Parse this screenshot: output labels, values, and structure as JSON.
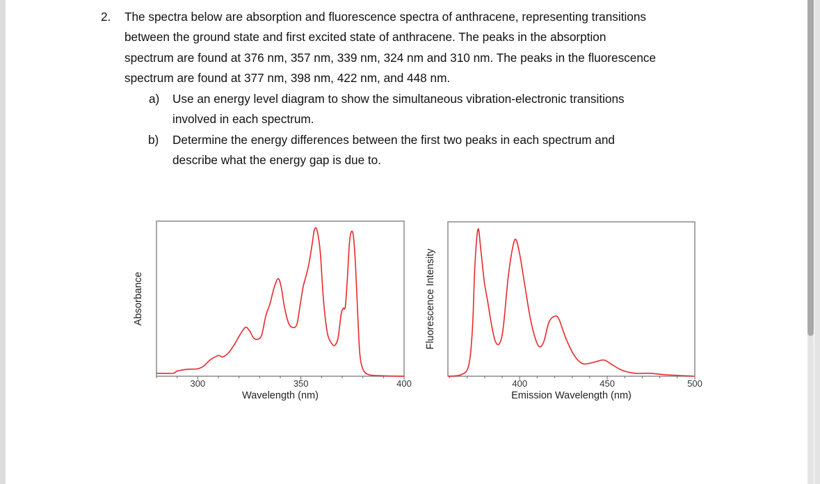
{
  "question": {
    "number": "2.",
    "lines": [
      "The spectra below are absorption and fluorescence spectra of anthracene, representing transitions",
      "between the ground state and first excited state of anthracene. The peaks in the absorption",
      "spectrum are found at 376 nm, 357 nm, 339 nm, 324 nm and 310 nm. The peaks in the fluorescence",
      "spectrum are found at 377 nm, 398 nm, 422 nm, and 448 nm."
    ],
    "parts": [
      {
        "label": "a)",
        "lines": [
          "Use an energy level diagram to show the simultaneous vibration-electronic transitions",
          "involved in each spectrum."
        ]
      },
      {
        "label": "b)",
        "lines": [
          "Determine the energy differences between the first two peaks in each spectrum and",
          "describe what the energy gap is due to."
        ]
      }
    ]
  },
  "colors": {
    "curve": "#e8282b",
    "frame": "#8a8a8a"
  },
  "chart_data": [
    {
      "type": "line",
      "title": "",
      "xlabel": "Wavelength (nm)",
      "ylabel": "Absorbance",
      "xlim": [
        280,
        400
      ],
      "ylim": [
        0,
        1.05
      ],
      "xticks": [
        300,
        350,
        400
      ],
      "minor_tick_step": 10,
      "grid": false,
      "series": [
        {
          "name": "Absorption",
          "x": [
            280,
            288,
            290,
            295,
            300,
            303,
            306,
            310,
            312,
            315,
            318,
            320,
            323,
            325,
            327,
            329,
            331,
            333,
            335,
            337,
            339,
            340.5,
            342,
            344,
            346,
            348,
            349.5,
            351,
            352.5,
            354,
            355.5,
            356.5,
            357.5,
            358.5,
            359.5,
            360.5,
            361.5,
            363,
            365,
            366.5,
            368,
            369.5,
            370.5,
            371.5,
            372.5,
            373.5,
            374.5,
            375.5,
            376.5,
            377.5,
            378.5,
            380,
            383,
            390,
            400
          ],
          "y": [
            0.02,
            0.02,
            0.035,
            0.047,
            0.05,
            0.07,
            0.11,
            0.14,
            0.13,
            0.16,
            0.22,
            0.27,
            0.33,
            0.31,
            0.26,
            0.25,
            0.28,
            0.41,
            0.49,
            0.6,
            0.66,
            0.6,
            0.47,
            0.36,
            0.33,
            0.35,
            0.47,
            0.6,
            0.68,
            0.77,
            0.9,
            0.99,
            1.0,
            0.94,
            0.82,
            0.6,
            0.43,
            0.28,
            0.22,
            0.21,
            0.26,
            0.42,
            0.46,
            0.47,
            0.66,
            0.9,
            0.98,
            0.94,
            0.74,
            0.43,
            0.16,
            0.05,
            0.01,
            0.003,
            0.0
          ]
        }
      ]
    },
    {
      "type": "line",
      "title": "",
      "xlabel": "Emission Wavelength (nm)",
      "ylabel": "Fluorescence Intensity",
      "xlim": [
        359,
        500
      ],
      "ylim": [
        0,
        1.05
      ],
      "xticks": [
        400,
        450,
        500
      ],
      "minor_tick_step": 10,
      "grid": false,
      "series": [
        {
          "name": "Fluorescence",
          "x": [
            359,
            366.4,
            370.8,
            373,
            374.4,
            376.2,
            377.8,
            379.8,
            381.7,
            383.9,
            386,
            388.3,
            390.5,
            393.4,
            395.9,
            397.8,
            400,
            402.9,
            405.8,
            408.8,
            411.4,
            413.9,
            416.8,
            420.5,
            422.7,
            426.3,
            430.7,
            435.1,
            438.7,
            443.9,
            448.2,
            452.6,
            458.5,
            465.8,
            474.6,
            483.3,
            499.4
          ],
          "y": [
            0.0,
            0.01,
            0.07,
            0.32,
            0.75,
            1.0,
            0.86,
            0.64,
            0.51,
            0.35,
            0.24,
            0.22,
            0.32,
            0.67,
            0.87,
            0.93,
            0.83,
            0.62,
            0.41,
            0.26,
            0.2,
            0.24,
            0.37,
            0.41,
            0.38,
            0.26,
            0.15,
            0.09,
            0.085,
            0.1,
            0.11,
            0.08,
            0.04,
            0.02,
            0.02,
            0.01,
            0.0
          ]
        }
      ]
    }
  ]
}
